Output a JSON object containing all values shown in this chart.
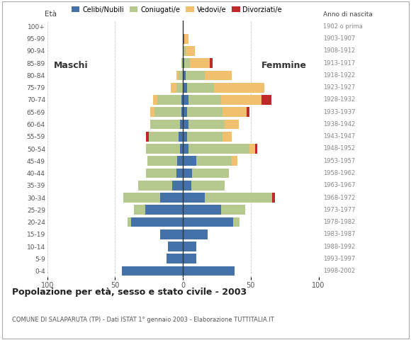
{
  "age_groups": [
    "0-4",
    "5-9",
    "10-14",
    "15-19",
    "20-24",
    "25-29",
    "30-34",
    "35-39",
    "40-44",
    "45-49",
    "50-54",
    "55-59",
    "60-64",
    "65-69",
    "70-74",
    "75-79",
    "80-84",
    "85-89",
    "90-94",
    "95-99",
    "100+"
  ],
  "birth_years": [
    "1998-2002",
    "1993-1997",
    "1988-1992",
    "1983-1987",
    "1978-1982",
    "1973-1977",
    "1968-1972",
    "1963-1967",
    "1958-1962",
    "1953-1957",
    "1948-1952",
    "1943-1947",
    "1938-1942",
    "1933-1937",
    "1928-1932",
    "1923-1927",
    "1918-1922",
    "1913-1917",
    "1908-1912",
    "1903-1907",
    "1902 o prima"
  ],
  "colors": {
    "celibi": "#4472a8",
    "coniugati": "#b5c98e",
    "vedovi": "#f0c06e",
    "divorziati": "#c0292a"
  },
  "males": {
    "celibi": [
      45,
      12,
      11,
      17,
      38,
      28,
      17,
      8,
      5,
      4,
      2,
      3,
      2,
      1,
      1,
      0,
      0,
      0,
      0,
      0,
      0
    ],
    "coniugati": [
      0,
      0,
      0,
      0,
      3,
      8,
      27,
      25,
      22,
      22,
      25,
      22,
      22,
      20,
      18,
      5,
      3,
      1,
      0,
      0,
      0
    ],
    "vedovi": [
      0,
      0,
      0,
      0,
      0,
      0,
      0,
      0,
      0,
      0,
      0,
      0,
      0,
      3,
      3,
      4,
      2,
      0,
      0,
      0,
      0
    ],
    "divorziati": [
      0,
      0,
      0,
      0,
      0,
      0,
      0,
      0,
      0,
      0,
      0,
      2,
      0,
      0,
      0,
      0,
      0,
      0,
      0,
      0,
      0
    ]
  },
  "females": {
    "celibi": [
      38,
      10,
      10,
      18,
      37,
      28,
      16,
      6,
      7,
      10,
      4,
      3,
      4,
      3,
      4,
      3,
      2,
      1,
      0,
      1,
      0
    ],
    "coniugati": [
      0,
      0,
      0,
      0,
      5,
      18,
      50,
      25,
      27,
      26,
      45,
      26,
      27,
      26,
      24,
      20,
      14,
      4,
      2,
      0,
      0
    ],
    "vedovi": [
      0,
      0,
      0,
      0,
      0,
      0,
      0,
      0,
      0,
      4,
      4,
      7,
      10,
      18,
      30,
      37,
      20,
      15,
      7,
      3,
      0
    ],
    "divorziati": [
      0,
      0,
      0,
      0,
      0,
      0,
      2,
      0,
      0,
      0,
      2,
      0,
      0,
      2,
      7,
      0,
      0,
      2,
      0,
      0,
      0
    ]
  },
  "title": "Popolazione per età, sesso e stato civile - 2003",
  "subtitle": "COMUNE DI SALAPARUTA (TP) - Dati ISTAT 1° gennaio 2003 - Elaborazione TUTTITALIA.IT",
  "legend_labels": [
    "Celibi/Nubili",
    "Coniugati/e",
    "Vedovi/e",
    "Divorziati/e"
  ],
  "xlim": 100,
  "ylabel_eta": "Età",
  "ylabel_nascita": "Anno di nascita",
  "label_maschi": "Maschi",
  "label_femmine": "Femmine",
  "bg_color": "#ffffff",
  "grid_color": "#cccccc",
  "bar_height": 0.8
}
